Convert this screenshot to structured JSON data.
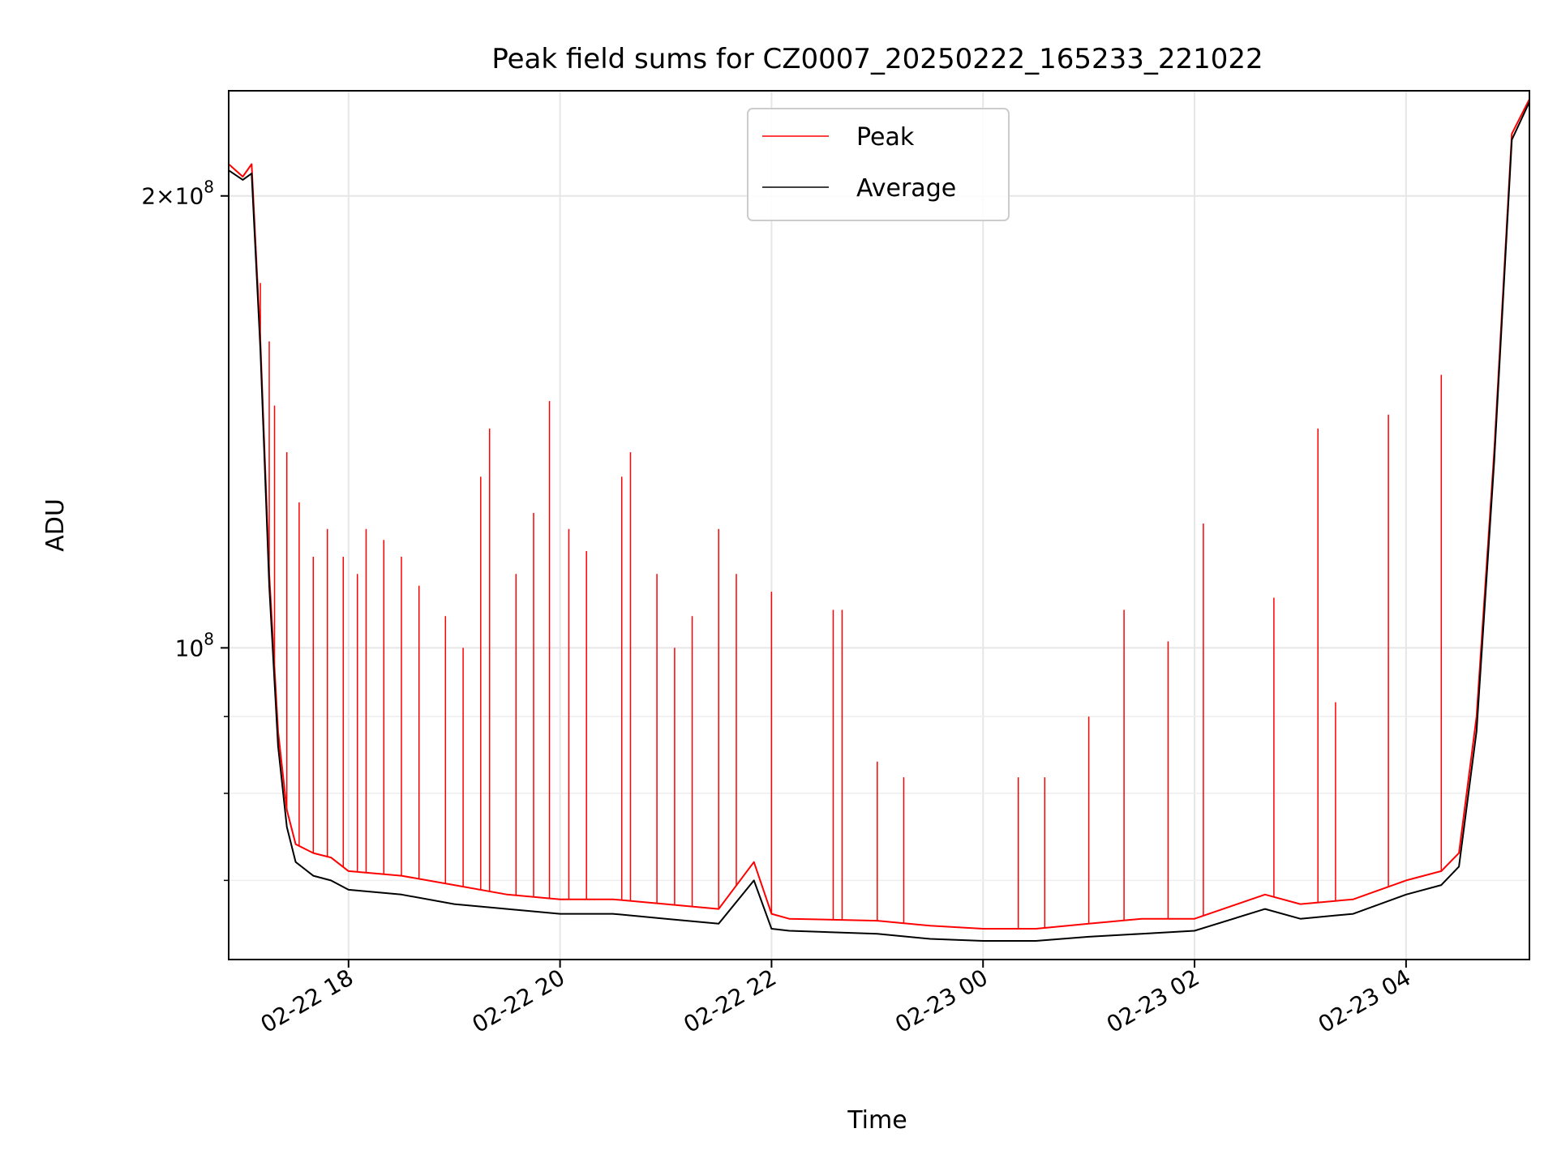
{
  "chart_data": {
    "type": "line",
    "title": "Peak field sums for CZ0007_20250222_165233_221022",
    "xlabel": "Time",
    "ylabel": "ADU",
    "y_scale": "log",
    "grid": true,
    "legend_position": "upper-center",
    "x_tick_labels": [
      "02-22 18",
      "02-22 20",
      "02-22 22",
      "02-23 00",
      "02-23 02",
      "02-23 04"
    ],
    "y_tick_labels": [
      {
        "value": 200000000,
        "base": "2×10",
        "exp": "8"
      },
      {
        "value": 100000000,
        "base": "10",
        "exp": "8"
      }
    ],
    "xlim": [
      "2025-02-22 16:52",
      "2025-02-23 05:10"
    ],
    "ylim": [
      62000000,
      235000000
    ],
    "series": [
      {
        "name": "Peak",
        "color": "#ff0000",
        "x": [
          "2025-02-22 16:52",
          "2025-02-22 17:00",
          "2025-02-22 17:05",
          "2025-02-22 17:10",
          "2025-02-22 17:15",
          "2025-02-22 17:20",
          "2025-02-22 17:25",
          "2025-02-22 17:30",
          "2025-02-22 17:40",
          "2025-02-22 17:50",
          "2025-02-22 18:00",
          "2025-02-22 18:30",
          "2025-02-22 19:00",
          "2025-02-22 19:30",
          "2025-02-22 20:00",
          "2025-02-22 20:30",
          "2025-02-22 21:00",
          "2025-02-22 21:30",
          "2025-02-22 21:50",
          "2025-02-22 22:00",
          "2025-02-22 22:10",
          "2025-02-22 23:00",
          "2025-02-22 23:30",
          "2025-02-23 00:00",
          "2025-02-23 00:30",
          "2025-02-23 01:00",
          "2025-02-23 01:30",
          "2025-02-23 02:00",
          "2025-02-23 02:40",
          "2025-02-23 03:00",
          "2025-02-23 03:30",
          "2025-02-23 04:00",
          "2025-02-23 04:20",
          "2025-02-23 04:30",
          "2025-02-23 04:40",
          "2025-02-23 04:50",
          "2025-02-23 05:00",
          "2025-02-23 05:10"
        ],
        "y": [
          210000000,
          206000000,
          210000000,
          160000000,
          112000000,
          88000000,
          78000000,
          74000000,
          73000000,
          72500000,
          71000000,
          70500000,
          69500000,
          68500000,
          68000000,
          68000000,
          67500000,
          67000000,
          72000000,
          66500000,
          66000000,
          65800000,
          65300000,
          65000000,
          65000000,
          65500000,
          66000000,
          66000000,
          68500000,
          67500000,
          68000000,
          70000000,
          71000000,
          73000000,
          90000000,
          135000000,
          220000000,
          232000000
        ],
        "spikes": [
          {
            "x": "2025-02-22 17:10",
            "y": 175000000
          },
          {
            "x": "2025-02-22 17:15",
            "y": 160000000
          },
          {
            "x": "2025-02-22 17:18",
            "y": 145000000
          },
          {
            "x": "2025-02-22 17:25",
            "y": 135000000
          },
          {
            "x": "2025-02-22 17:32",
            "y": 125000000
          },
          {
            "x": "2025-02-22 17:40",
            "y": 115000000
          },
          {
            "x": "2025-02-22 17:48",
            "y": 120000000
          },
          {
            "x": "2025-02-22 17:57",
            "y": 115000000
          },
          {
            "x": "2025-02-22 18:05",
            "y": 112000000
          },
          {
            "x": "2025-02-22 18:10",
            "y": 120000000
          },
          {
            "x": "2025-02-22 18:20",
            "y": 118000000
          },
          {
            "x": "2025-02-22 18:30",
            "y": 115000000
          },
          {
            "x": "2025-02-22 18:40",
            "y": 110000000
          },
          {
            "x": "2025-02-22 18:55",
            "y": 105000000
          },
          {
            "x": "2025-02-22 19:05",
            "y": 100000000
          },
          {
            "x": "2025-02-22 19:15",
            "y": 130000000
          },
          {
            "x": "2025-02-22 19:20",
            "y": 140000000
          },
          {
            "x": "2025-02-22 19:35",
            "y": 112000000
          },
          {
            "x": "2025-02-22 19:45",
            "y": 123000000
          },
          {
            "x": "2025-02-22 19:54",
            "y": 146000000
          },
          {
            "x": "2025-02-22 20:05",
            "y": 120000000
          },
          {
            "x": "2025-02-22 20:15",
            "y": 116000000
          },
          {
            "x": "2025-02-22 20:35",
            "y": 130000000
          },
          {
            "x": "2025-02-22 20:40",
            "y": 135000000
          },
          {
            "x": "2025-02-22 20:55",
            "y": 112000000
          },
          {
            "x": "2025-02-22 21:05",
            "y": 100000000
          },
          {
            "x": "2025-02-22 21:15",
            "y": 105000000
          },
          {
            "x": "2025-02-22 21:30",
            "y": 120000000
          },
          {
            "x": "2025-02-22 21:40",
            "y": 112000000
          },
          {
            "x": "2025-02-22 22:00",
            "y": 109000000
          },
          {
            "x": "2025-02-22 22:35",
            "y": 106000000
          },
          {
            "x": "2025-02-22 22:40",
            "y": 106000000
          },
          {
            "x": "2025-02-22 23:00",
            "y": 84000000
          },
          {
            "x": "2025-02-22 23:15",
            "y": 82000000
          },
          {
            "x": "2025-02-23 00:20",
            "y": 82000000
          },
          {
            "x": "2025-02-23 00:35",
            "y": 82000000
          },
          {
            "x": "2025-02-23 01:00",
            "y": 90000000
          },
          {
            "x": "2025-02-23 01:20",
            "y": 106000000
          },
          {
            "x": "2025-02-23 01:45",
            "y": 101000000
          },
          {
            "x": "2025-02-23 02:05",
            "y": 121000000
          },
          {
            "x": "2025-02-23 02:45",
            "y": 108000000
          },
          {
            "x": "2025-02-23 03:10",
            "y": 140000000
          },
          {
            "x": "2025-02-23 03:20",
            "y": 92000000
          },
          {
            "x": "2025-02-23 03:50",
            "y": 143000000
          },
          {
            "x": "2025-02-23 04:20",
            "y": 152000000
          }
        ]
      },
      {
        "name": "Average",
        "color": "#000000",
        "x": [
          "2025-02-22 16:52",
          "2025-02-22 17:00",
          "2025-02-22 17:05",
          "2025-02-22 17:10",
          "2025-02-22 17:15",
          "2025-02-22 17:20",
          "2025-02-22 17:25",
          "2025-02-22 17:30",
          "2025-02-22 17:40",
          "2025-02-22 17:50",
          "2025-02-22 18:00",
          "2025-02-22 18:30",
          "2025-02-22 19:00",
          "2025-02-22 19:30",
          "2025-02-22 20:00",
          "2025-02-22 20:30",
          "2025-02-22 21:00",
          "2025-02-22 21:30",
          "2025-02-22 21:50",
          "2025-02-22 22:00",
          "2025-02-22 22:10",
          "2025-02-22 23:00",
          "2025-02-22 23:30",
          "2025-02-23 00:00",
          "2025-02-23 00:30",
          "2025-02-23 01:00",
          "2025-02-23 01:30",
          "2025-02-23 02:00",
          "2025-02-23 02:40",
          "2025-02-23 03:00",
          "2025-02-23 03:30",
          "2025-02-23 04:00",
          "2025-02-23 04:20",
          "2025-02-23 04:30",
          "2025-02-23 04:40",
          "2025-02-23 04:50",
          "2025-02-23 05:00",
          "2025-02-23 05:10"
        ],
        "y": [
          208000000,
          205000000,
          207000000,
          158000000,
          110000000,
          86000000,
          76000000,
          72000000,
          70500000,
          70000000,
          69000000,
          68500000,
          67500000,
          67000000,
          66500000,
          66500000,
          66000000,
          65500000,
          70000000,
          65000000,
          64800000,
          64500000,
          64000000,
          63800000,
          63800000,
          64200000,
          64500000,
          64800000,
          67000000,
          66000000,
          66500000,
          68500000,
          69500000,
          71500000,
          88000000,
          133000000,
          218000000,
          231000000
        ]
      }
    ]
  }
}
